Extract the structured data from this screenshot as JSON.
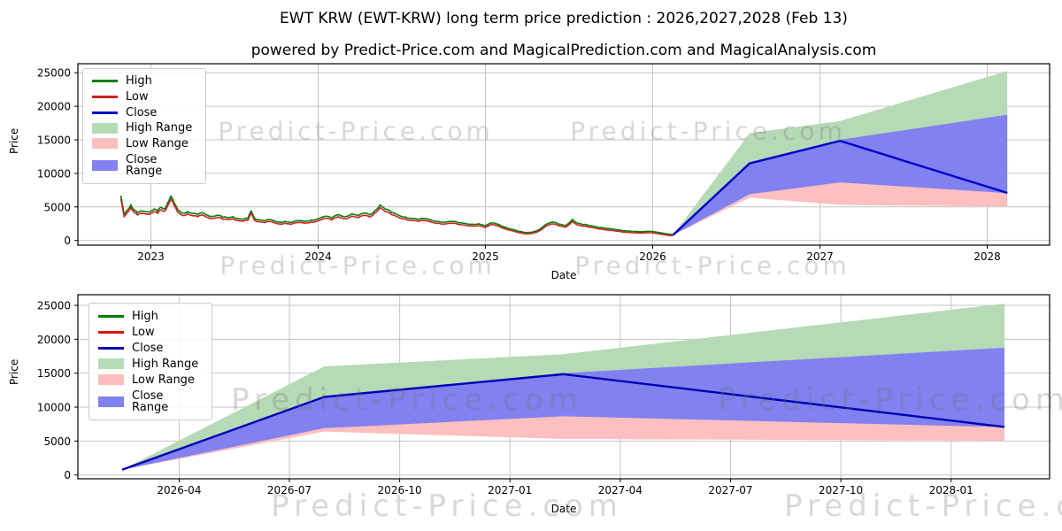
{
  "title": "EWT KRW (EWT-KRW) long term price prediction : 2026,2027,2028 (Feb 13)",
  "subtitle": "powered by Predict-Price.com and MagicalPrediction.com and MagicalAnalysis.com",
  "watermark_text": "Predict-Price.com",
  "colors": {
    "high_line": "#077d07",
    "low_line_top": "#cc2222",
    "low_line_bottom": "#e01111",
    "close_line": "#0000cd",
    "high_fill": "#b5dab5",
    "low_fill": "#fdbfbf",
    "close_fill": "#8181ef",
    "grid": "#c4c4c4",
    "watermark_gray": "#d9d9d9"
  },
  "chart_data": [
    {
      "type": "line",
      "title": "",
      "xlabel": "Date",
      "ylabel": "Price",
      "x_tick_labels": [
        "2023",
        "2024",
        "2025",
        "2026",
        "2027",
        "2028"
      ],
      "y_tick_labels": [
        "0",
        "5000",
        "10000",
        "15000",
        "20000",
        "25000"
      ],
      "y_tick_values": [
        0,
        5000,
        10000,
        15000,
        20000,
        25000
      ],
      "ylim": [
        0,
        26000
      ],
      "grid": true,
      "legend_position": "upper left",
      "legend": [
        {
          "label": "High",
          "swatch": "line",
          "color": "#077d07"
        },
        {
          "label": "Low",
          "swatch": "line",
          "color": "#cc2222"
        },
        {
          "label": "Close",
          "swatch": "line",
          "color": "#0000cd"
        },
        {
          "label": "High Range",
          "swatch": "patch",
          "color": "#b5dab5"
        },
        {
          "label": "Low Range",
          "swatch": "patch",
          "color": "#fdbfbd"
        },
        {
          "label": "Close Range",
          "swatch": "patch",
          "color": "#8181ef"
        }
      ],
      "historical_close": [
        [
          2022.82,
          6450
        ],
        [
          2022.83,
          5050
        ],
        [
          2022.84,
          3700
        ],
        [
          2022.86,
          4400
        ],
        [
          2022.88,
          5150
        ],
        [
          2022.9,
          4350
        ],
        [
          2022.92,
          3950
        ],
        [
          2022.95,
          4200
        ],
        [
          2022.98,
          4100
        ],
        [
          2023.0,
          4250
        ],
        [
          2023.02,
          4500
        ],
        [
          2023.04,
          4200
        ],
        [
          2023.06,
          4750
        ],
        [
          2023.08,
          4500
        ],
        [
          2023.1,
          5400
        ],
        [
          2023.12,
          6400
        ],
        [
          2023.14,
          5300
        ],
        [
          2023.16,
          4400
        ],
        [
          2023.19,
          3900
        ],
        [
          2023.22,
          4150
        ],
        [
          2023.25,
          3850
        ],
        [
          2023.28,
          3700
        ],
        [
          2023.31,
          3950
        ],
        [
          2023.34,
          3600
        ],
        [
          2023.37,
          3450
        ],
        [
          2023.4,
          3600
        ],
        [
          2023.43,
          3300
        ],
        [
          2023.46,
          3250
        ],
        [
          2023.49,
          3400
        ],
        [
          2023.52,
          3150
        ],
        [
          2023.55,
          3000
        ],
        [
          2023.58,
          3150
        ],
        [
          2023.6,
          4250
        ],
        [
          2023.62,
          3150
        ],
        [
          2023.65,
          2950
        ],
        [
          2023.68,
          2800
        ],
        [
          2023.71,
          2950
        ],
        [
          2023.74,
          2750
        ],
        [
          2023.77,
          2600
        ],
        [
          2023.8,
          2700
        ],
        [
          2023.84,
          2550
        ],
        [
          2023.88,
          2800
        ],
        [
          2023.92,
          2700
        ],
        [
          2023.96,
          2900
        ],
        [
          2024.0,
          3100
        ],
        [
          2024.04,
          3450
        ],
        [
          2024.08,
          3200
        ],
        [
          2024.12,
          3700
        ],
        [
          2024.16,
          3400
        ],
        [
          2024.2,
          3800
        ],
        [
          2024.24,
          3550
        ],
        [
          2024.28,
          3900
        ],
        [
          2024.31,
          3650
        ],
        [
          2024.34,
          4300
        ],
        [
          2024.37,
          5100
        ],
        [
          2024.4,
          4500
        ],
        [
          2024.44,
          4000
        ],
        [
          2024.48,
          3600
        ],
        [
          2024.52,
          3350
        ],
        [
          2024.56,
          3150
        ],
        [
          2024.6,
          3000
        ],
        [
          2024.64,
          3100
        ],
        [
          2024.68,
          2850
        ],
        [
          2024.72,
          2700
        ],
        [
          2024.76,
          2600
        ],
        [
          2024.8,
          2700
        ],
        [
          2024.84,
          2500
        ],
        [
          2024.88,
          2400
        ],
        [
          2024.92,
          2300
        ],
        [
          2024.96,
          2350
        ],
        [
          2025.0,
          2050
        ],
        [
          2025.04,
          2500
        ],
        [
          2025.08,
          2250
        ],
        [
          2025.12,
          1850
        ],
        [
          2025.16,
          1550
        ],
        [
          2025.2,
          1250
        ],
        [
          2025.24,
          1050
        ],
        [
          2025.28,
          1150
        ],
        [
          2025.32,
          1500
        ],
        [
          2025.36,
          2250
        ],
        [
          2025.4,
          2600
        ],
        [
          2025.44,
          2300
        ],
        [
          2025.48,
          2100
        ],
        [
          2025.52,
          3000
        ],
        [
          2025.55,
          2450
        ],
        [
          2025.58,
          2250
        ],
        [
          2025.62,
          2100
        ],
        [
          2025.66,
          1950
        ],
        [
          2025.7,
          1800
        ],
        [
          2025.74,
          1650
        ],
        [
          2025.78,
          1500
        ],
        [
          2025.82,
          1350
        ],
        [
          2025.86,
          1300
        ],
        [
          2025.9,
          1250
        ],
        [
          2025.94,
          1200
        ],
        [
          2025.98,
          1250
        ],
        [
          2026.02,
          1150
        ],
        [
          2026.06,
          1000
        ],
        [
          2026.12,
          780
        ]
      ],
      "forecast": {
        "dates": [
          "2026-02-13",
          "2026-08-01",
          "2027-02-13",
          "2028-02-13"
        ],
        "x_years": [
          2026.12,
          2026.58,
          2027.12,
          2028.12
        ],
        "close": [
          780,
          11500,
          14850,
          7080
        ],
        "close_range_lower": [
          780,
          6900,
          8650,
          7050
        ],
        "close_range_upper": [
          780,
          11650,
          15000,
          18750
        ],
        "high_range_lower": [
          780,
          11500,
          14900,
          18750
        ],
        "high_range_upper": [
          780,
          16000,
          17800,
          25250
        ],
        "low_range_lower": [
          780,
          6400,
          5300,
          5050
        ],
        "low_range_upper": [
          780,
          7000,
          8800,
          7150
        ]
      }
    },
    {
      "type": "line",
      "title": "",
      "xlabel": "Date",
      "ylabel": "Price",
      "x_tick_labels": [
        "2026-04",
        "2026-07",
        "2026-10",
        "2027-01",
        "2027-04",
        "2027-07",
        "2027-10",
        "2028-01"
      ],
      "y_tick_labels": [
        "0",
        "5000",
        "10000",
        "15000",
        "20000",
        "25000"
      ],
      "y_tick_values": [
        0,
        5000,
        10000,
        15000,
        20000,
        25000
      ],
      "ylim": [
        0,
        26500
      ],
      "grid": true,
      "legend_position": "upper left",
      "legend": [
        {
          "label": "High",
          "swatch": "line",
          "color": "#077d07"
        },
        {
          "label": "Low",
          "swatch": "line",
          "color": "#e01111"
        },
        {
          "label": "Close",
          "swatch": "line",
          "color": "#0000b8"
        },
        {
          "label": "High Range",
          "swatch": "patch",
          "color": "#b5dab5"
        },
        {
          "label": "Low Range",
          "swatch": "patch",
          "color": "#fdbfbd"
        },
        {
          "label": "Close Range",
          "swatch": "patch",
          "color": "#8181ef"
        }
      ],
      "forecast": {
        "dates": [
          "2026-02-13",
          "2026-08-01",
          "2027-02-13",
          "2028-02-13"
        ],
        "x_months": [
          0,
          5.5,
          12,
          24
        ],
        "close": [
          780,
          11500,
          14850,
          7080
        ],
        "close_range_lower": [
          780,
          6900,
          8650,
          7050
        ],
        "close_range_upper": [
          780,
          11650,
          15000,
          18750
        ],
        "high_range_lower": [
          780,
          11500,
          14900,
          18750
        ],
        "high_range_upper": [
          780,
          16000,
          17800,
          25250
        ],
        "low_range_lower": [
          780,
          6400,
          5300,
          5050
        ],
        "low_range_upper": [
          780,
          7000,
          8800,
          7150
        ]
      }
    }
  ]
}
